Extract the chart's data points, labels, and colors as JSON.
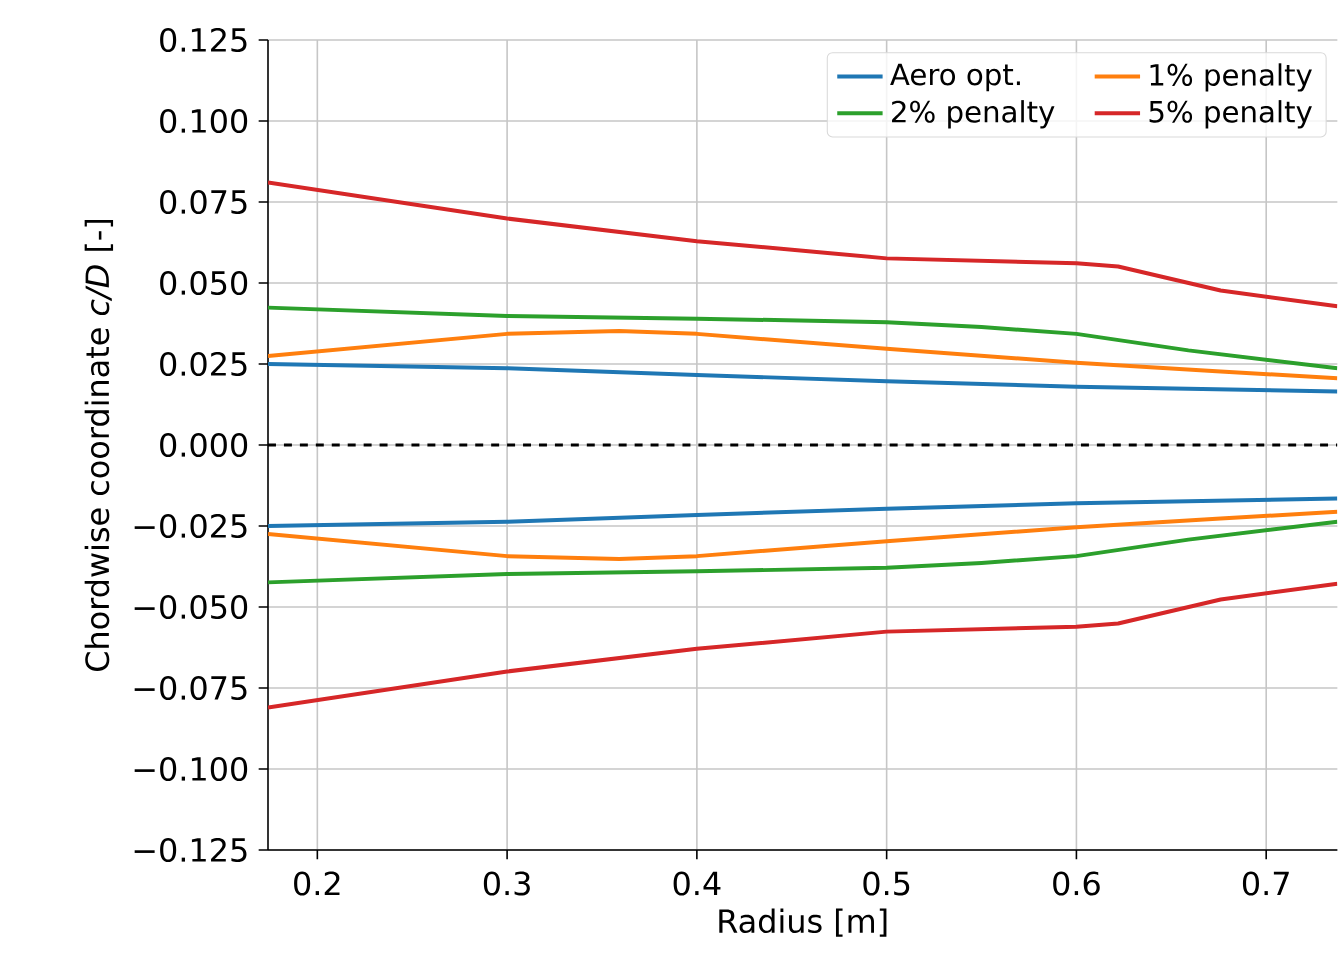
{
  "chart_data": {
    "type": "line",
    "xlabel": "Radius [m]",
    "ylabel": "Chordwise coordinate *c/D* [-]",
    "xlim": [
      0.174,
      0.7375
    ],
    "ylim": [
      -0.125,
      0.125
    ],
    "xticks": [
      0.2,
      0.3,
      0.4,
      0.5,
      0.6,
      0.7
    ],
    "yticks": [
      {
        "value": -0.125,
        "label": "−0.125"
      },
      {
        "value": -0.1,
        "label": "−0.100"
      },
      {
        "value": -0.075,
        "label": "−0.075"
      },
      {
        "value": -0.05,
        "label": "−0.050"
      },
      {
        "value": -0.025,
        "label": "−0.025"
      },
      {
        "value": 0,
        "label": "0.000"
      },
      {
        "value": 0.025,
        "label": "0.025"
      },
      {
        "value": 0.05,
        "label": "0.050"
      },
      {
        "value": 0.075,
        "label": "0.075"
      },
      {
        "value": 0.1,
        "label": "0.100"
      },
      {
        "value": 0.125,
        "label": "0.125"
      }
    ],
    "grid": true,
    "legend": "top right",
    "ref_lines": [
      {
        "axis": "y",
        "value": 0,
        "color": "#000000",
        "line_style": "dashed"
      }
    ],
    "series": [
      {
        "name": "Aero opt.",
        "color": "#1f77b4",
        "x": [
          0.174,
          0.3,
          0.4,
          0.5,
          0.6,
          0.7375
        ],
        "values": [
          0.025,
          0.0237,
          0.0216,
          0.0197,
          0.018,
          0.0165
        ]
      },
      {
        "color": "#1f77b4",
        "x": [
          0.174,
          0.3,
          0.4,
          0.5,
          0.6,
          0.7375
        ],
        "values": [
          -0.025,
          -0.0237,
          -0.0216,
          -0.0197,
          -0.018,
          -0.0165
        ]
      },
      {
        "name": "1% penalty",
        "color": "#ff7f0e",
        "x": [
          0.174,
          0.3,
          0.359,
          0.4,
          0.5,
          0.6,
          0.676,
          0.7375
        ],
        "values": [
          0.0275,
          0.0343,
          0.0352,
          0.0343,
          0.0297,
          0.0254,
          0.0227,
          0.0206
        ]
      },
      {
        "color": "#ff7f0e",
        "x": [
          0.174,
          0.3,
          0.359,
          0.4,
          0.5,
          0.6,
          0.676,
          0.7375
        ],
        "values": [
          -0.0275,
          -0.0343,
          -0.0352,
          -0.0343,
          -0.0297,
          -0.0254,
          -0.0227,
          -0.0206
        ]
      },
      {
        "name": "2% penalty",
        "color": "#2ca02c",
        "x": [
          0.174,
          0.3,
          0.4,
          0.5,
          0.55,
          0.6,
          0.659,
          0.7375
        ],
        "values": [
          0.0424,
          0.0398,
          0.039,
          0.0379,
          0.0364,
          0.0343,
          0.0292,
          0.0237
        ]
      },
      {
        "color": "#2ca02c",
        "x": [
          0.174,
          0.3,
          0.4,
          0.5,
          0.55,
          0.6,
          0.659,
          0.7375
        ],
        "values": [
          -0.0424,
          -0.0398,
          -0.039,
          -0.0379,
          -0.0364,
          -0.0343,
          -0.0292,
          -0.0237
        ]
      },
      {
        "name": "5% penalty",
        "color": "#d62728",
        "x": [
          0.174,
          0.3,
          0.4,
          0.5,
          0.6,
          0.622,
          0.676,
          0.7375
        ],
        "values": [
          0.081,
          0.0699,
          0.0629,
          0.0576,
          0.0561,
          0.0551,
          0.0477,
          0.0428
        ]
      },
      {
        "color": "#d62728",
        "x": [
          0.174,
          0.3,
          0.4,
          0.5,
          0.6,
          0.622,
          0.676,
          0.7375
        ],
        "values": [
          -0.081,
          -0.0699,
          -0.0629,
          -0.0576,
          -0.0561,
          -0.0551,
          -0.0477,
          -0.0428
        ]
      }
    ]
  }
}
